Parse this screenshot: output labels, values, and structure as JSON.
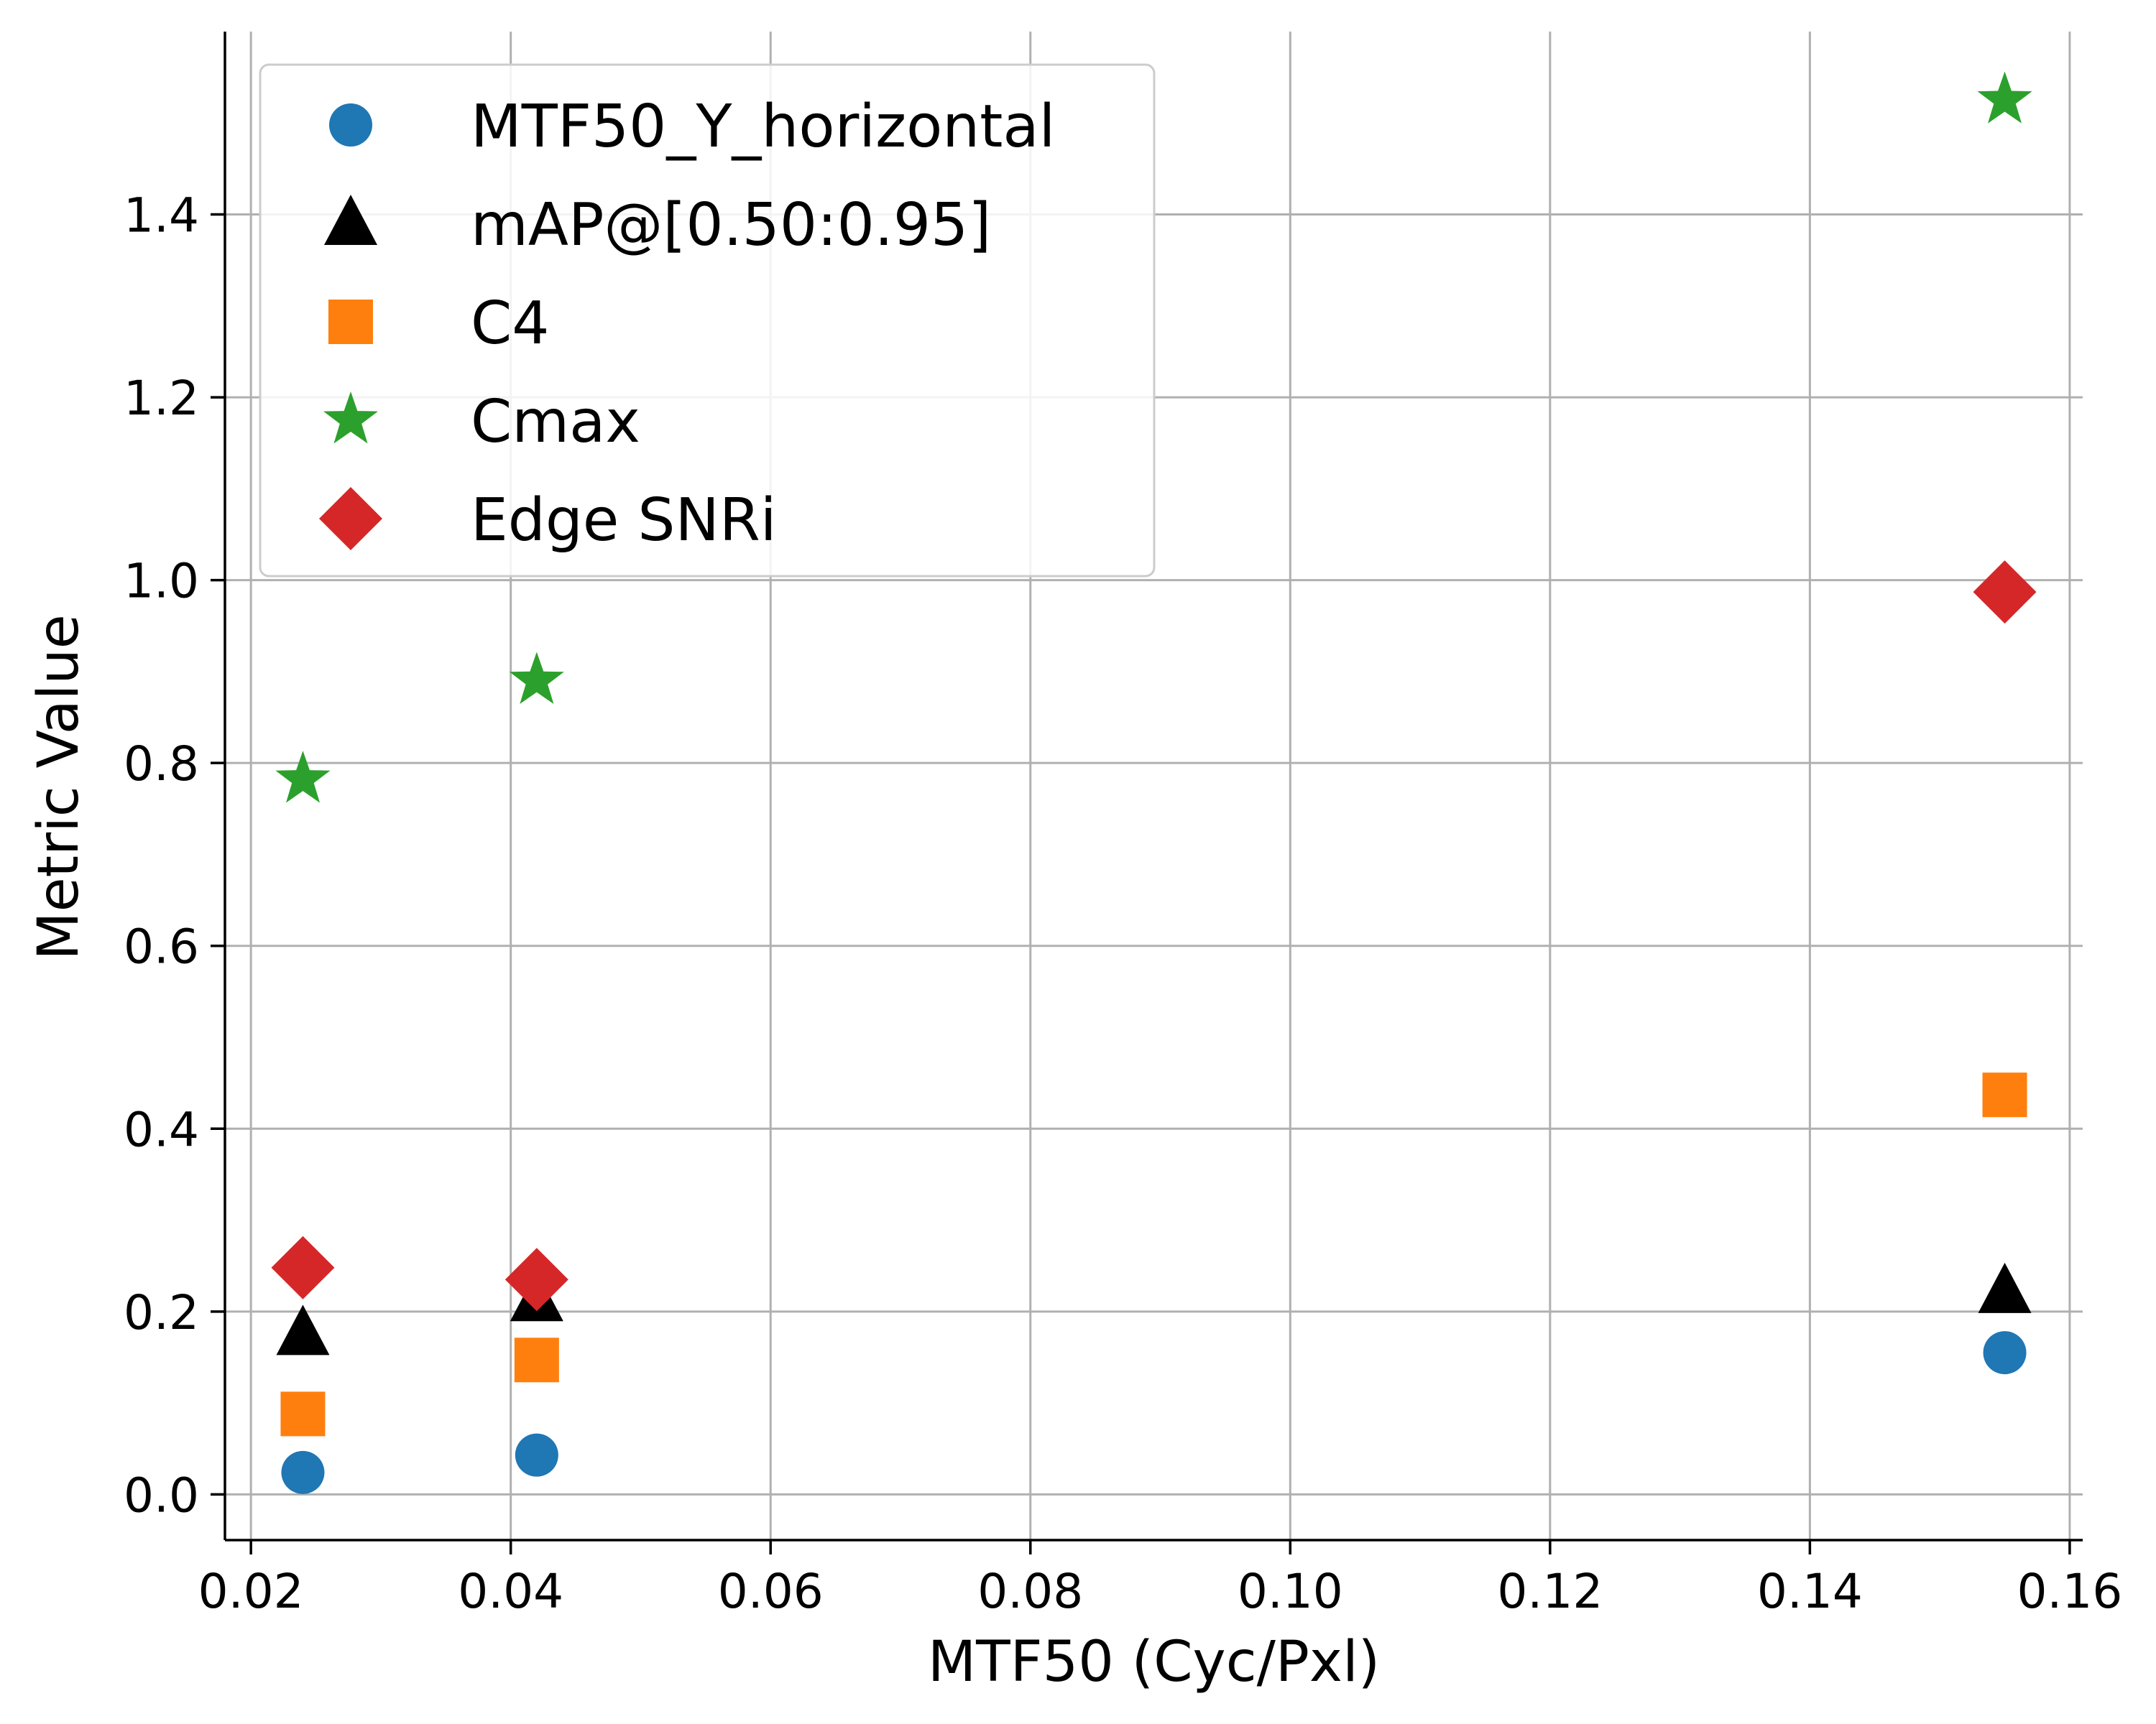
{
  "chart_data": {
    "type": "scatter",
    "xlabel": "MTF50 (Cyc/Pxl)",
    "ylabel": "Metric Value",
    "xlim": [
      0.018,
      0.161
    ],
    "ylim": [
      -0.05,
      1.6
    ],
    "x_ticks": [
      0.02,
      0.04,
      0.06,
      0.08,
      0.1,
      0.12,
      0.14,
      0.16
    ],
    "x_tick_labels": [
      "0.02",
      "0.04",
      "0.06",
      "0.08",
      "0.10",
      "0.12",
      "0.14",
      "0.16"
    ],
    "y_ticks": [
      0.0,
      0.2,
      0.4,
      0.6,
      0.8,
      1.0,
      1.2,
      1.4
    ],
    "y_tick_labels": [
      "0.0",
      "0.2",
      "0.4",
      "0.6",
      "0.8",
      "1.0",
      "1.2",
      "1.4"
    ],
    "grid": true,
    "legend_position": "top-left",
    "x": [
      0.024,
      0.042,
      0.155
    ],
    "series": [
      {
        "name": "MTF50_Y_horizontal",
        "marker": "circle",
        "color": "#1f77b4",
        "values": [
          0.024,
          0.043,
          0.155
        ]
      },
      {
        "name": "mAP@[0.50:0.95]",
        "marker": "triangle",
        "color": "#000000",
        "values": [
          0.176,
          0.213,
          0.222
        ]
      },
      {
        "name": "C4",
        "marker": "square",
        "color": "#ff7f0e",
        "values": [
          0.088,
          0.147,
          0.437
        ]
      },
      {
        "name": "Cmax",
        "marker": "star",
        "color": "#2ca02c",
        "values": [
          0.782,
          0.89,
          1.525
        ]
      },
      {
        "name": "Edge SNRi",
        "marker": "diamond",
        "color": "#d62728",
        "values": [
          0.248,
          0.235,
          0.987
        ]
      }
    ]
  }
}
